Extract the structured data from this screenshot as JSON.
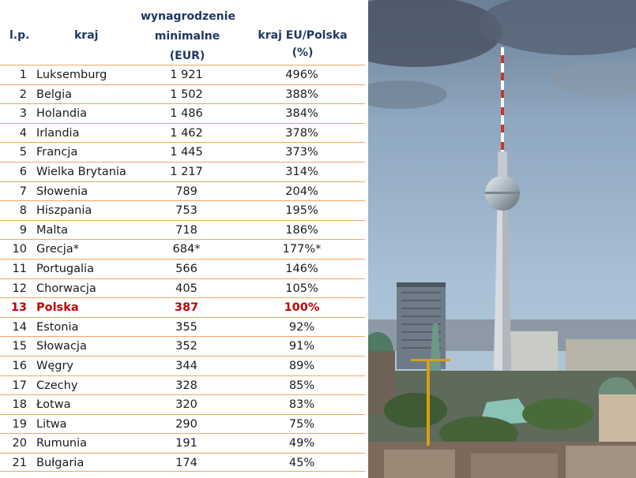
{
  "headers": {
    "lp": "l.p.",
    "country": "kraj",
    "wage_line1": "wynagrodzenie",
    "wage_line2": "minimalne",
    "wage_line3": "(EUR)",
    "ratio": "kraj EU/Polska (%)"
  },
  "rows": [
    {
      "lp": "1",
      "country": "Luksemburg",
      "wage": "1 921",
      "ratio": "496%"
    },
    {
      "lp": "2",
      "country": "Belgia",
      "wage": "1 502",
      "ratio": "388%"
    },
    {
      "lp": "3",
      "country": "Holandia",
      "wage": "1 486",
      "ratio": "384%"
    },
    {
      "lp": "4",
      "country": "Irlandia",
      "wage": "1 462",
      "ratio": "378%"
    },
    {
      "lp": "5",
      "country": "Francja",
      "wage": "1 445",
      "ratio": "373%"
    },
    {
      "lp": "6",
      "country": "Wielka Brytania",
      "wage": "1 217",
      "ratio": "314%"
    },
    {
      "lp": "7",
      "country": "Słowenia",
      "wage": "789",
      "ratio": "204%"
    },
    {
      "lp": "8",
      "country": "Hiszpania",
      "wage": "753",
      "ratio": "195%"
    },
    {
      "lp": "9",
      "country": "Malta",
      "wage": "718",
      "ratio": "186%"
    },
    {
      "lp": "10",
      "country": "Grecja*",
      "wage": "684*",
      "ratio": "177%*"
    },
    {
      "lp": "11",
      "country": "Portugalia",
      "wage": "566",
      "ratio": "146%"
    },
    {
      "lp": "12",
      "country": "Chorwacja",
      "wage": "405",
      "ratio": "105%"
    },
    {
      "lp": "13",
      "country": "Polska",
      "wage": "387",
      "ratio": "100%"
    },
    {
      "lp": "14",
      "country": "Estonia",
      "wage": "355",
      "ratio": "92%"
    },
    {
      "lp": "15",
      "country": "Słowacja",
      "wage": "352",
      "ratio": "91%"
    },
    {
      "lp": "16",
      "country": "Węgry",
      "wage": "344",
      "ratio": "89%"
    },
    {
      "lp": "17",
      "country": "Czechy",
      "wage": "328",
      "ratio": "85%"
    },
    {
      "lp": "18",
      "country": "Łotwa",
      "wage": "320",
      "ratio": "83%"
    },
    {
      "lp": "19",
      "country": "Litwa",
      "wage": "290",
      "ratio": "75%"
    },
    {
      "lp": "20",
      "country": "Rumunia",
      "wage": "191",
      "ratio": "49%"
    },
    {
      "lp": "21",
      "country": "Bułgaria",
      "wage": "174",
      "ratio": "45%"
    }
  ],
  "highlight_country": "Polska",
  "colors": {
    "header_text": "#1f3864",
    "row_rule": "#f0a660",
    "highlight": "#c00000"
  },
  "image": {
    "name": "berlin-tv-tower-photo"
  }
}
